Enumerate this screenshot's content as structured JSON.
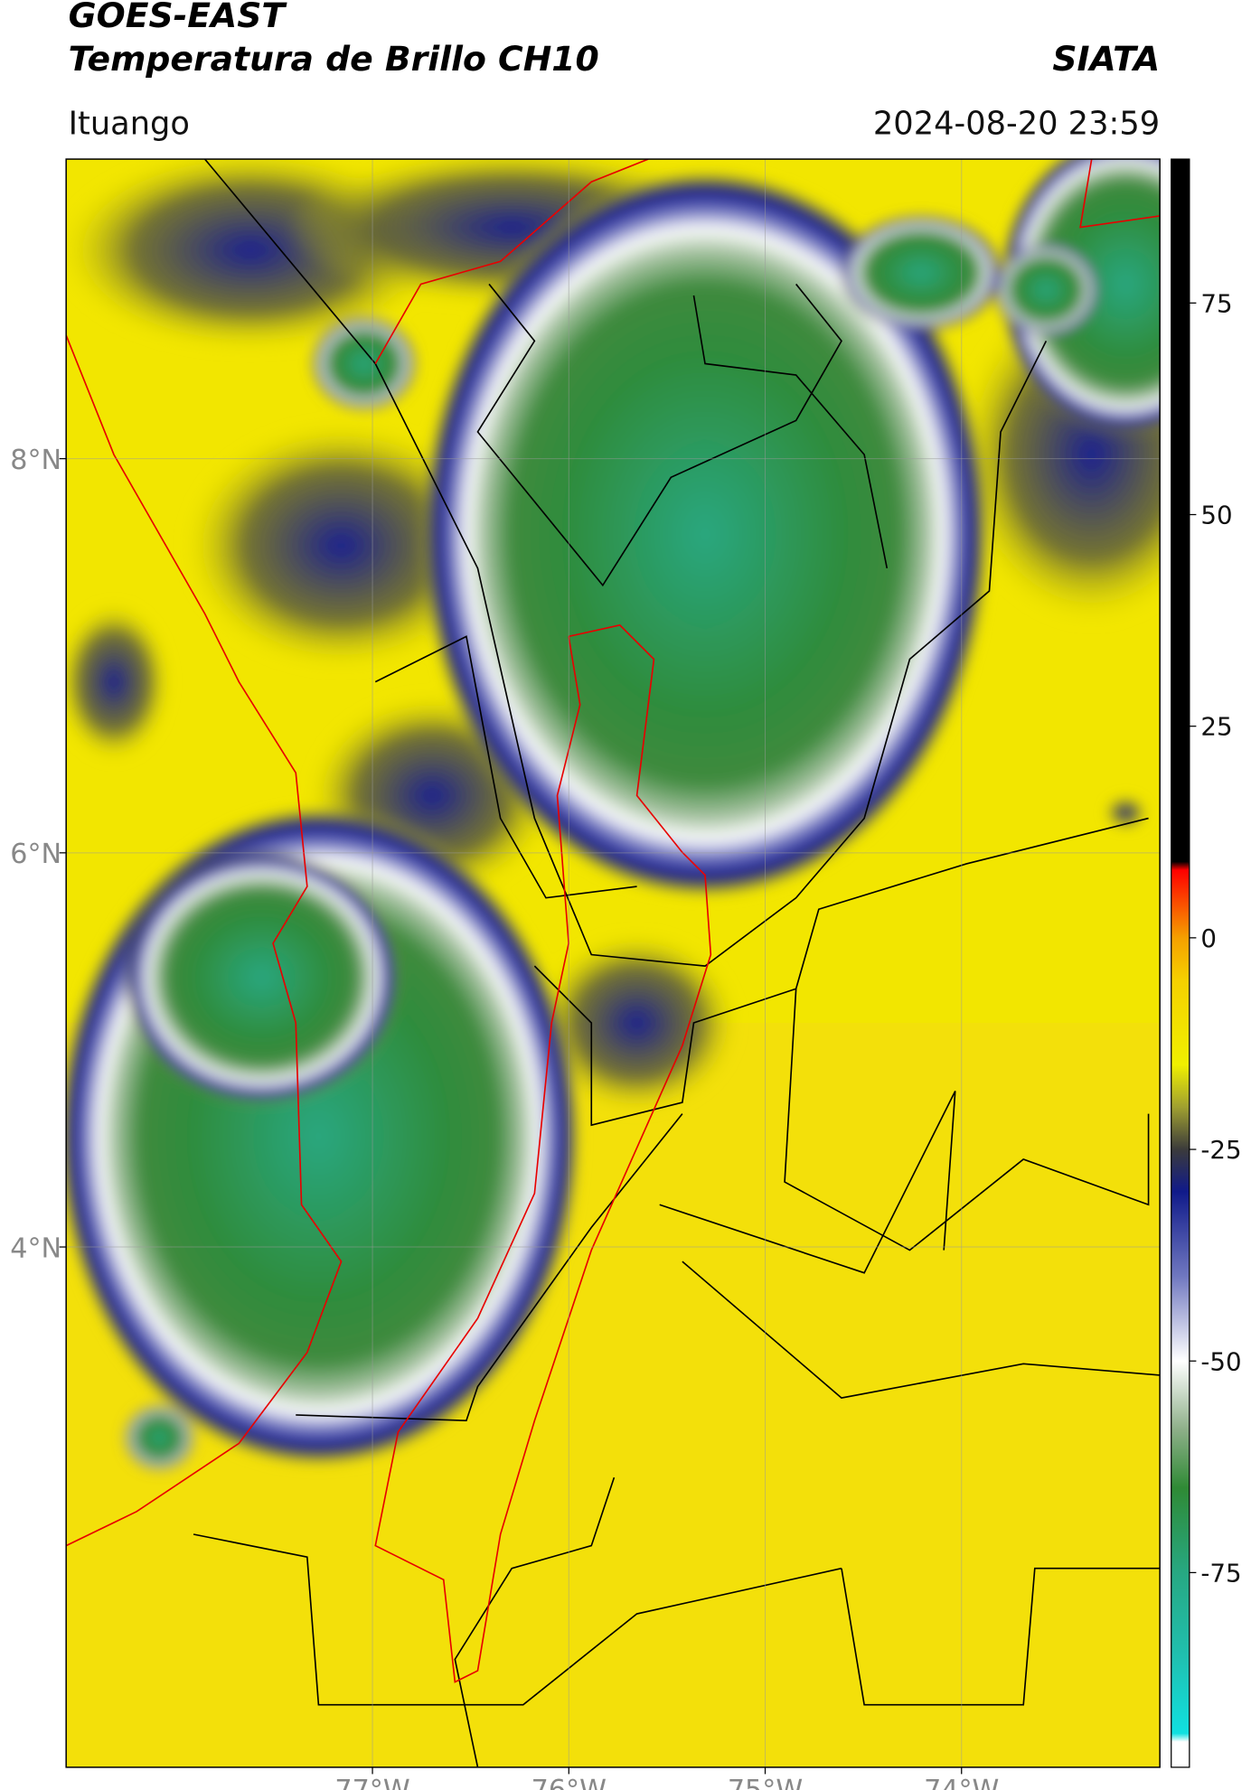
{
  "header": {
    "title": "GOES-EAST",
    "subtitle": "Temperatura de Brillo CH10",
    "agency": "SIATA",
    "location": "Ituango",
    "datetime": "2024-08-20 23:59"
  },
  "map": {
    "xlim": [
      -78.56,
      -72.99
    ],
    "ylim": [
      1.36,
      9.52
    ],
    "grid": true,
    "xticks": [
      {
        "value": -77,
        "label": "77°W"
      },
      {
        "value": -76,
        "label": "76°W"
      },
      {
        "value": -75,
        "label": "75°W"
      },
      {
        "value": -74,
        "label": "74°W"
      }
    ],
    "yticks": [
      {
        "value": 8,
        "label": "8°N"
      },
      {
        "value": 6,
        "label": "6°N"
      },
      {
        "value": 4,
        "label": "4°N"
      }
    ]
  },
  "colorbar": {
    "lim": [
      -98,
      92
    ],
    "ticks": [
      75,
      50,
      25,
      0,
      -25,
      -50,
      -75
    ],
    "stops": [
      [
        -98,
        "#ffffff"
      ],
      [
        -95,
        "#ffffff"
      ],
      [
        -94,
        "#10e0e0"
      ],
      [
        -85,
        "#20c0b0"
      ],
      [
        -75,
        "#27a882"
      ],
      [
        -65,
        "#2f8a35"
      ],
      [
        -58,
        "#8fb08a"
      ],
      [
        -50,
        "#ffffff"
      ],
      [
        -40,
        "#7078c0"
      ],
      [
        -30,
        "#101a8a"
      ],
      [
        -25,
        "#3b3b3b"
      ],
      [
        -20,
        "#a0a030"
      ],
      [
        -15,
        "#f0f000"
      ],
      [
        -5,
        "#f5d000"
      ],
      [
        0,
        "#f5a000"
      ],
      [
        8,
        "#ff0000"
      ],
      [
        9,
        "#000000"
      ],
      [
        92,
        "#000000"
      ]
    ]
  }
}
